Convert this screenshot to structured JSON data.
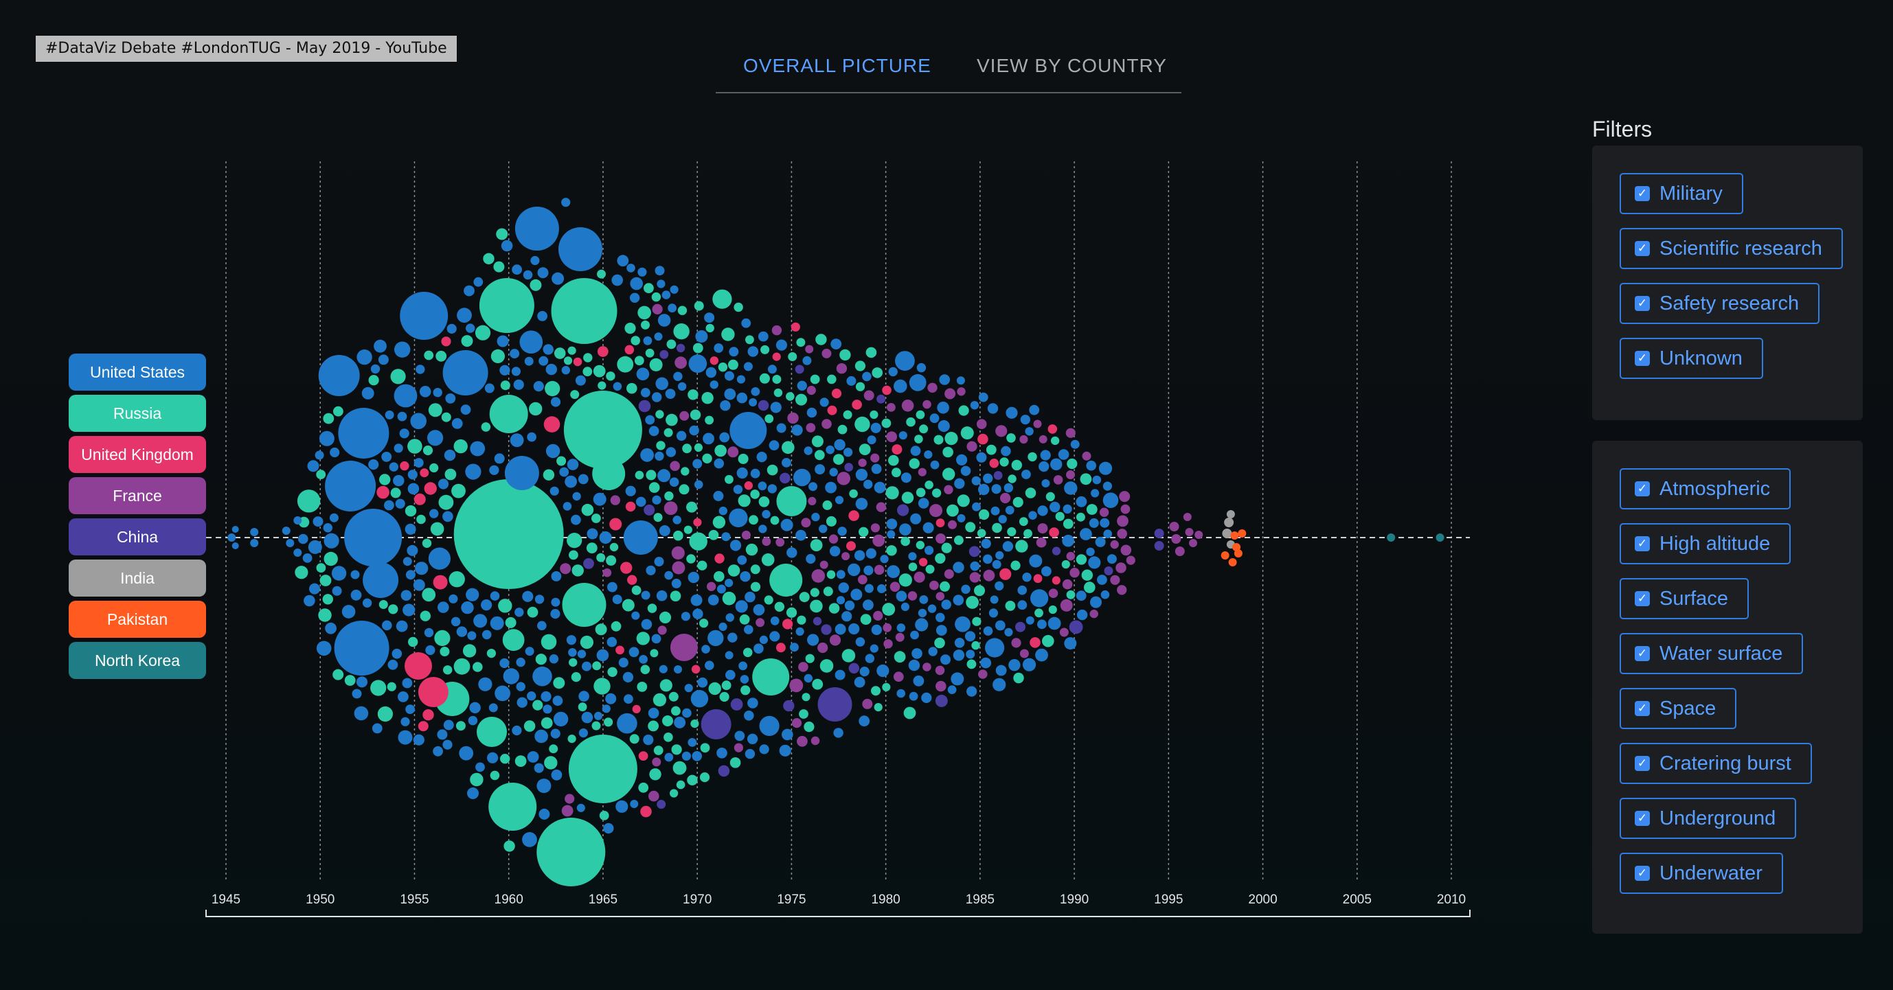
{
  "video_title": "#DataViz Debate #LondonTUG - May 2019 - YouTube",
  "tabs": [
    {
      "label": "OVERALL PICTURE",
      "active": true
    },
    {
      "label": "VIEW BY COUNTRY",
      "active": false
    }
  ],
  "colors": {
    "accent": "#5aa0ff",
    "United States": "#1f78c8",
    "Russia": "#2ecba8",
    "United Kingdom": "#e5356b",
    "France": "#8e3f96",
    "China": "#4a3fa0",
    "India": "#9e9e9e",
    "Pakistan": "#ff5a1f",
    "North Korea": "#1f7d86"
  },
  "legend": [
    "United States",
    "Russia",
    "United Kingdom",
    "France",
    "China",
    "India",
    "Pakistan",
    "North Korea"
  ],
  "filters": {
    "title": "Filters",
    "purpose": [
      "Military",
      "Scientific research",
      "Safety research",
      "Unknown"
    ],
    "type": [
      "Atmospheric",
      "High altitude",
      "Surface",
      "Water surface",
      "Space",
      "Cratering burst",
      "Underground",
      "Underwater"
    ],
    "icon": "checkbox-checked-icon"
  },
  "chart_data": {
    "type": "scatter",
    "encoding": "beeswarm of bubbles; x = year of test, size = yield, color = country",
    "x_ticks": [
      "1945",
      "1950",
      "1955",
      "1960",
      "1965",
      "1970",
      "1975",
      "1980",
      "1985",
      "1990",
      "1995",
      "2000",
      "2005",
      "2010"
    ],
    "xlim": [
      1944,
      2011
    ],
    "grid": true,
    "series": [
      {
        "name": "United States",
        "year_range": [
          1945,
          1992
        ]
      },
      {
        "name": "Russia",
        "year_range": [
          1949,
          1990
        ]
      },
      {
        "name": "United Kingdom",
        "year_range": [
          1952,
          1991
        ]
      },
      {
        "name": "France",
        "year_range": [
          1960,
          1996
        ]
      },
      {
        "name": "China",
        "year_range": [
          1964,
          1996
        ]
      },
      {
        "name": "India",
        "year_range": [
          1974,
          1998
        ]
      },
      {
        "name": "Pakistan",
        "year_range": [
          1998,
          1998
        ]
      },
      {
        "name": "North Korea",
        "year_range": [
          2006,
          2009
        ]
      }
    ]
  }
}
